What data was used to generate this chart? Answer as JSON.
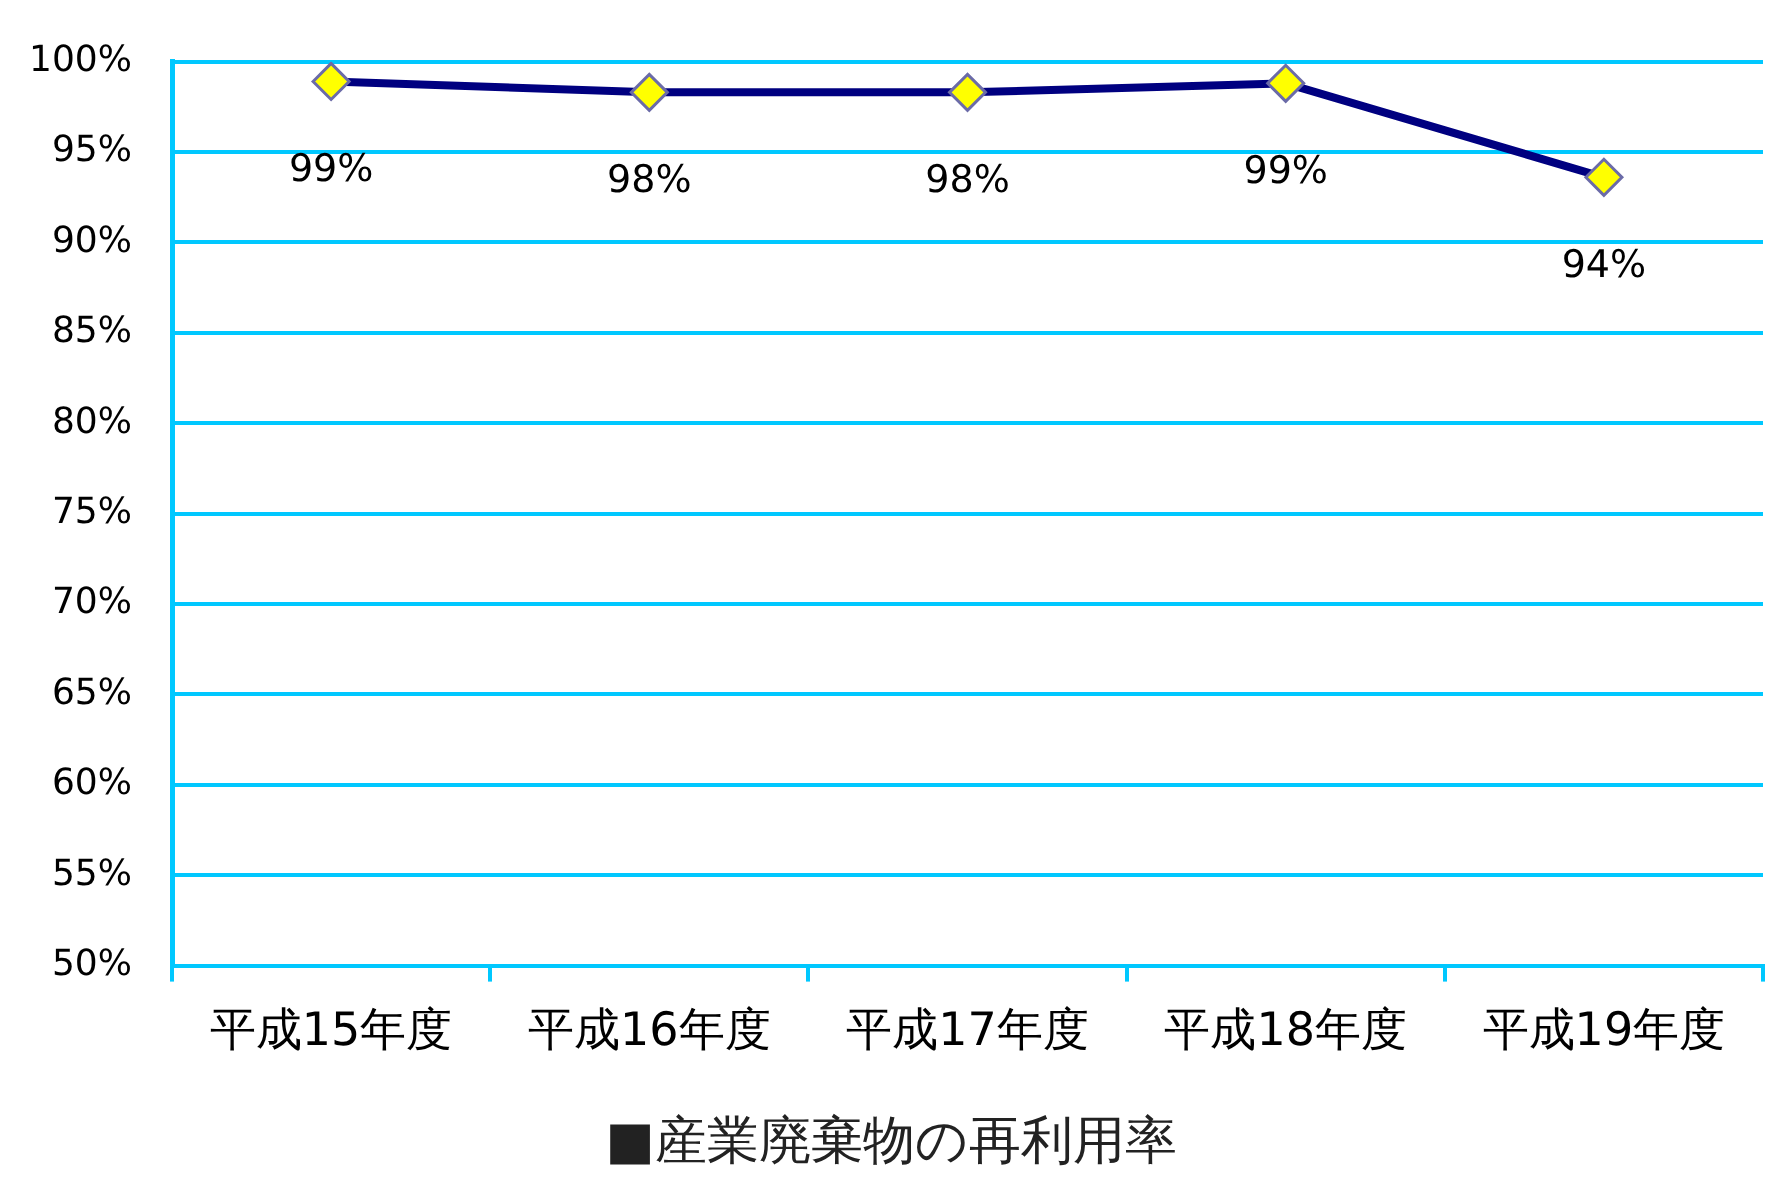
{
  "chart_data": {
    "type": "line",
    "title": "■産業廃棄物の再利用率",
    "categories": [
      "平成15年度",
      "平成16年度",
      "平成17年度",
      "平成18年度",
      "平成19年度"
    ],
    "series": [
      {
        "color": "#000080",
        "colors": [
          "#ffff00",
          "#ffff00",
          "#ffff00",
          "#ffff00",
          "#ffff00"
        ],
        "values": [
          98.9,
          98.3,
          98.3,
          98.8,
          93.6
        ],
        "value_labels": [
          "99%",
          "98%",
          "98%",
          "99%",
          "94%"
        ]
      }
    ],
    "ylim": [
      50,
      100
    ],
    "yticks": [
      {
        "value": 50,
        "label": "50%"
      },
      {
        "value": 55,
        "label": "55%"
      },
      {
        "value": 60,
        "label": "60%"
      },
      {
        "value": 65,
        "label": "65%"
      },
      {
        "value": 70,
        "label": "70%"
      },
      {
        "value": 75,
        "label": "75%"
      },
      {
        "value": 80,
        "label": "80%"
      },
      {
        "value": 85,
        "label": "85%"
      },
      {
        "value": 90,
        "label": "90%"
      },
      {
        "value": 95,
        "label": "95%"
      },
      {
        "value": 100,
        "label": "100%"
      }
    ],
    "grid": "y",
    "marker": "diamond",
    "line_style": "solid",
    "legend": false
  }
}
